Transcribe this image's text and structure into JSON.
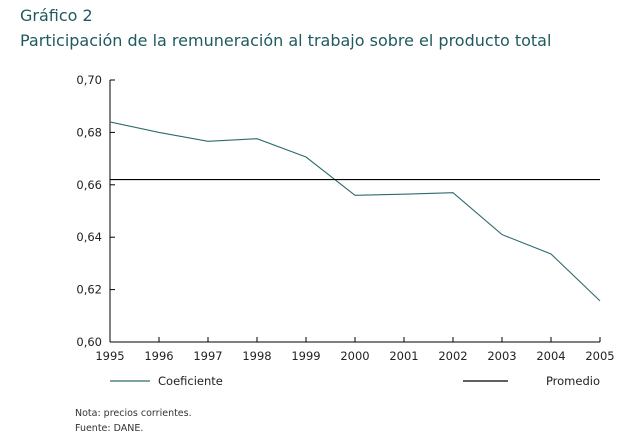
{
  "header": {
    "figure_label": "Gráfico 2",
    "title": "Participación de la remuneración al trabajo sobre el producto total"
  },
  "chart_data": {
    "type": "line",
    "title": "Participación de la remuneración al trabajo sobre el producto total",
    "xlabel": "",
    "ylabel": "",
    "x": [
      "1995",
      "1996",
      "1997",
      "1998",
      "1999",
      "2000",
      "2001",
      "2002",
      "2003",
      "2004",
      "2005"
    ],
    "series": [
      {
        "name": "Coeficiente",
        "color": "#2f6b6e",
        "values": [
          0.684,
          0.68,
          0.6766,
          0.6776,
          0.6706,
          0.656,
          0.6564,
          0.657,
          0.641,
          0.6336,
          0.6157
        ]
      },
      {
        "name": "Promedio",
        "color": "#000000",
        "values": [
          0.662,
          0.662,
          0.662,
          0.662,
          0.662,
          0.662,
          0.662,
          0.662,
          0.662,
          0.662,
          0.662
        ]
      }
    ],
    "ylim": [
      0.6,
      0.7
    ],
    "yticks": [
      "0,60",
      "0,62",
      "0,64",
      "0,66",
      "0,68",
      "0,70"
    ],
    "ytick_values": [
      0.6,
      0.62,
      0.64,
      0.66,
      0.68,
      0.7
    ],
    "grid": false,
    "legend_placement": "bottom"
  },
  "notes": {
    "nota": "Nota: precios corrientes.",
    "fuente": "Fuente: DANE."
  }
}
